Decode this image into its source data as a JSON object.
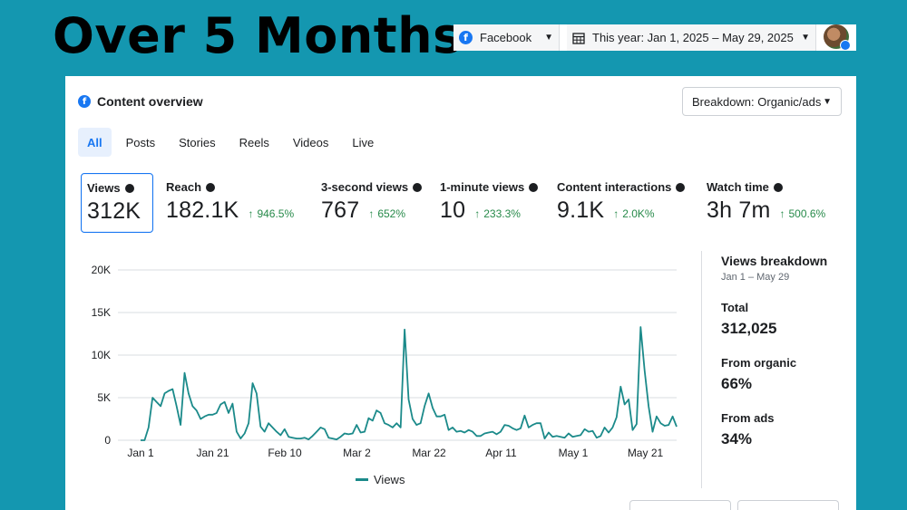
{
  "headline": "Over 5 Months",
  "topbar": {
    "platform": "Facebook",
    "date_range": "This year: Jan 1, 2025 – May 29, 2025"
  },
  "overview": {
    "title": "Content overview",
    "breakdown_button": "Breakdown: Organic/ads",
    "tabs": [
      {
        "label": "All",
        "active": true
      },
      {
        "label": "Posts"
      },
      {
        "label": "Stories"
      },
      {
        "label": "Reels"
      },
      {
        "label": "Videos"
      },
      {
        "label": "Live"
      }
    ],
    "metrics": [
      {
        "label": "Views",
        "value": "312K",
        "delta": ""
      },
      {
        "label": "Reach",
        "value": "182.1K",
        "delta": "946.5%"
      },
      {
        "label": "3-second views",
        "value": "767",
        "delta": "652%"
      },
      {
        "label": "1-minute views",
        "value": "10",
        "delta": "233.3%"
      },
      {
        "label": "Content interactions",
        "value": "9.1K",
        "delta": "2.0K%"
      },
      {
        "label": "Watch time",
        "value": "3h 7m",
        "delta": "500.6%"
      }
    ],
    "delta_arrow": "↑",
    "legend_label": "Views"
  },
  "side_panel": {
    "title": "Views breakdown",
    "subtitle": "Jan 1 – May 29",
    "total_label": "Total",
    "total_value": "312,025",
    "organic_label": "From organic",
    "organic_value": "66%",
    "ads_label": "From ads",
    "ads_value": "34%"
  },
  "colors": {
    "background": "#1497b0",
    "line": "#1b8a8a",
    "accent": "#1877f2",
    "positive": "#278a4a"
  },
  "chart_data": {
    "type": "line",
    "x_ticks": [
      "Jan 1",
      "Jan 21",
      "Feb 10",
      "Mar 2",
      "Mar 22",
      "Apr 11",
      "May 1",
      "May 21"
    ],
    "y_ticks": [
      "0",
      "5K",
      "10K",
      "15K",
      "20K"
    ],
    "ylim": [
      0,
      20000
    ],
    "grid": true,
    "legend": "bottom-center",
    "series": [
      {
        "name": "Views",
        "values": [
          0,
          0,
          1500,
          5000,
          4500,
          4000,
          5500,
          5800,
          6000,
          4000,
          1800,
          7900,
          5500,
          4000,
          3500,
          2500,
          2800,
          3000,
          3000,
          3200,
          4200,
          4500,
          3200,
          4300,
          1000,
          200,
          800,
          2000,
          6700,
          5500,
          1600,
          1000,
          2000,
          1500,
          1000,
          600,
          1300,
          400,
          300,
          200,
          200,
          300,
          100,
          500,
          1000,
          1500,
          1300,
          300,
          200,
          100,
          400,
          800,
          700,
          800,
          1800,
          900,
          1000,
          2600,
          2300,
          3500,
          3200,
          2000,
          1800,
          1500,
          2000,
          1500,
          13000,
          4800,
          2500,
          1800,
          2000,
          4000,
          5500,
          3800,
          2800,
          2800,
          3000,
          1200,
          1500,
          1000,
          1100,
          900,
          1200,
          1000,
          500,
          500,
          800,
          900,
          1000,
          700,
          1000,
          1800,
          1700,
          1400,
          1200,
          1400,
          2900,
          1500,
          1800,
          2000,
          2000,
          200,
          900,
          400,
          500,
          400,
          300,
          800,
          400,
          500,
          600,
          1300,
          1000,
          1100,
          300,
          500,
          1500,
          900,
          1500,
          2700,
          6300,
          4200,
          4800,
          1200,
          1900,
          13300,
          8200,
          4000,
          1000,
          2800,
          2000,
          1700,
          1800,
          2800,
          1600
        ]
      }
    ]
  }
}
